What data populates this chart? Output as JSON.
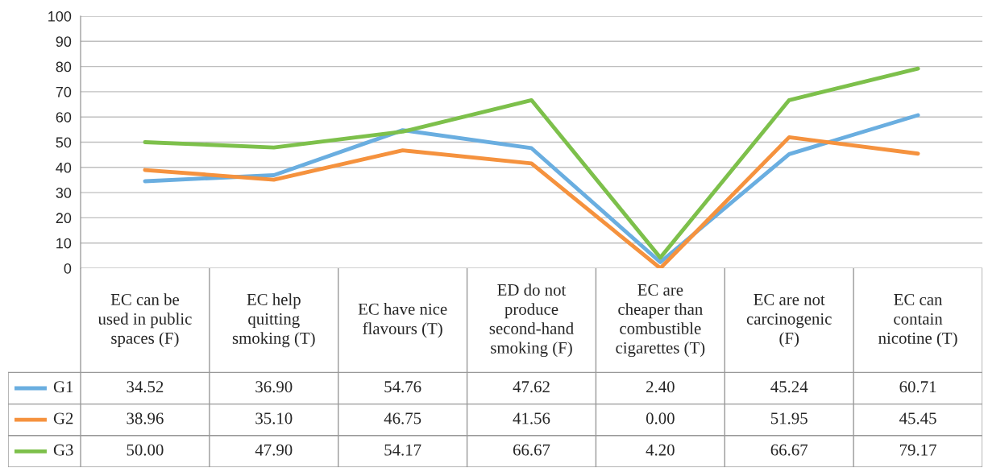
{
  "chart_data": {
    "type": "line",
    "categories": [
      "EC can be\nused in public\nspaces (F)",
      "EC help\nquitting\nsmoking (T)",
      "EC have nice\nflavours (T)",
      "ED do not\nproduce\nsecond-hand\nsmoking (F)",
      "EC are\ncheaper than\ncombustible\ncigarettes (T)",
      "EC are not\ncarcinogenic\n(F)",
      "EC can\ncontain\nnicotine (T)"
    ],
    "series": [
      {
        "name": "G1",
        "color": "#6aaee0",
        "values": [
          34.52,
          36.9,
          54.76,
          47.62,
          2.4,
          45.24,
          60.71
        ],
        "value_labels": [
          "34.52",
          "36.90",
          "54.76",
          "47.62",
          "2.40",
          "45.24",
          "60.71"
        ]
      },
      {
        "name": "G2",
        "color": "#f5923e",
        "values": [
          38.96,
          35.1,
          46.75,
          41.56,
          0.0,
          51.95,
          45.45
        ],
        "value_labels": [
          "38.96",
          "35.10",
          "46.75",
          "41.56",
          "0.00",
          "51.95",
          "45.45"
        ]
      },
      {
        "name": "G3",
        "color": "#7dc04b",
        "values": [
          50.0,
          47.9,
          54.17,
          66.67,
          4.2,
          66.67,
          79.17
        ],
        "value_labels": [
          "50.00",
          "47.90",
          "54.17",
          "66.67",
          "4.20",
          "66.67",
          "79.17"
        ]
      }
    ],
    "ylim": [
      0,
      100
    ],
    "yticks": [
      0,
      10,
      20,
      30,
      40,
      50,
      60,
      70,
      80,
      90,
      100
    ],
    "grid": "y",
    "legend": "bottom left",
    "marker": "none",
    "line_style": "solid"
  }
}
